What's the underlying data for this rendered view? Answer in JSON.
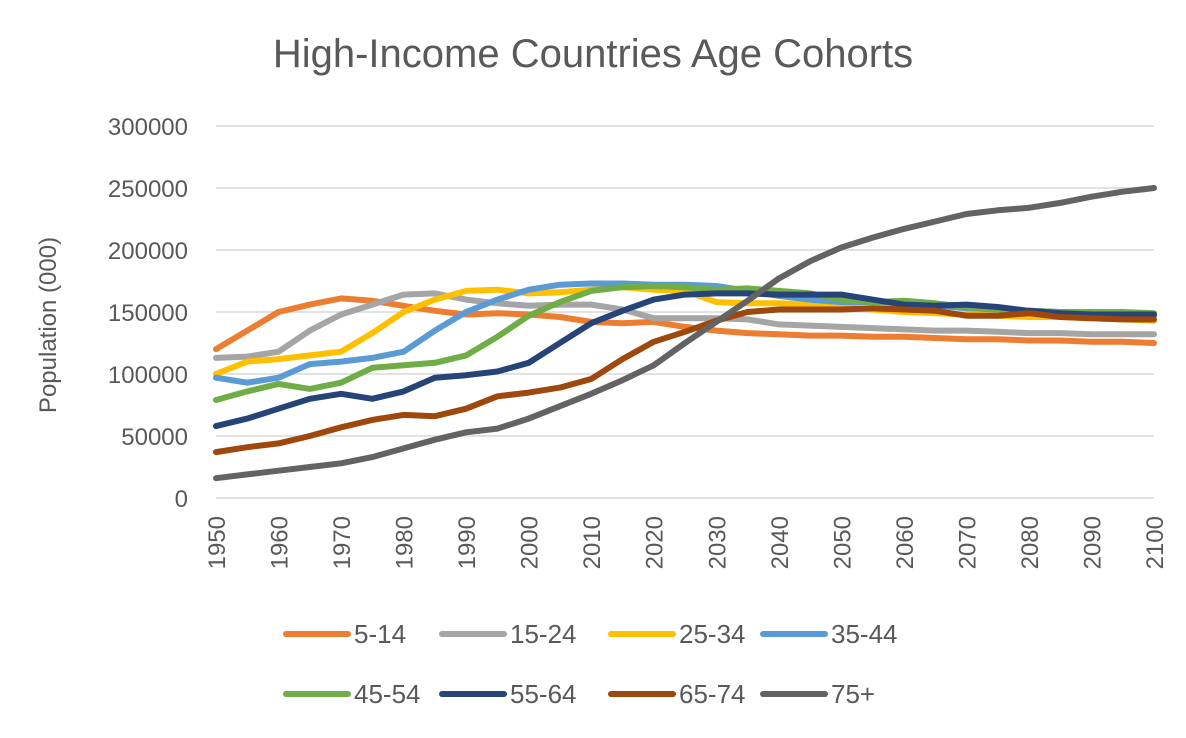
{
  "chart_data": {
    "type": "line",
    "title": "High-Income Countries Age Cohorts",
    "xlabel": "",
    "ylabel": "Population (000)",
    "ylim": [
      0,
      300000
    ],
    "yticks": [
      0,
      50000,
      100000,
      150000,
      200000,
      250000,
      300000
    ],
    "grid": true,
    "legend_position": "bottom",
    "x": [
      1950,
      1955,
      1960,
      1965,
      1970,
      1975,
      1980,
      1985,
      1990,
      1995,
      2000,
      2005,
      2010,
      2015,
      2020,
      2025,
      2030,
      2035,
      2040,
      2045,
      2050,
      2055,
      2060,
      2065,
      2070,
      2075,
      2080,
      2085,
      2090,
      2095,
      2100
    ],
    "xtick_labels": [
      "1950",
      "1960",
      "1970",
      "1980",
      "1990",
      "2000",
      "2010",
      "2020",
      "2030",
      "2040",
      "2050",
      "2060",
      "2070",
      "2080",
      "2090",
      "2100"
    ],
    "series": [
      {
        "name": "5-14",
        "color": "#ED7D31",
        "values": [
          120000,
          135000,
          150000,
          156000,
          161000,
          159000,
          155000,
          151000,
          148000,
          149000,
          148000,
          146000,
          142000,
          141000,
          142000,
          138000,
          135000,
          133000,
          132000,
          131000,
          131000,
          130000,
          130000,
          129000,
          128000,
          128000,
          127000,
          127000,
          126000,
          126000,
          125000
        ]
      },
      {
        "name": "15-24",
        "color": "#A5A5A5",
        "values": [
          113000,
          114000,
          118000,
          135000,
          148000,
          156000,
          164000,
          165000,
          160000,
          157000,
          155000,
          156000,
          156000,
          152000,
          145000,
          145000,
          145000,
          144000,
          140000,
          139000,
          138000,
          137000,
          136000,
          135000,
          135000,
          134000,
          133000,
          133000,
          132000,
          132000,
          132000
        ]
      },
      {
        "name": "25-34",
        "color": "#FFC000",
        "values": [
          100000,
          110000,
          112000,
          115000,
          118000,
          133000,
          150000,
          160000,
          167000,
          168000,
          165000,
          166000,
          168000,
          170000,
          168000,
          167000,
          158000,
          157000,
          157000,
          156000,
          154000,
          152000,
          150000,
          149000,
          148000,
          147000,
          146000,
          146000,
          145000,
          144000,
          143000
        ]
      },
      {
        "name": "35-44",
        "color": "#5B9BD5",
        "values": [
          97000,
          93000,
          97000,
          108000,
          110000,
          113000,
          118000,
          135000,
          150000,
          160000,
          168000,
          172000,
          173000,
          173000,
          172000,
          172000,
          171000,
          167000,
          163000,
          160000,
          158000,
          158000,
          157000,
          155000,
          153000,
          152000,
          151000,
          150000,
          149000,
          148000,
          147000
        ]
      },
      {
        "name": "45-54",
        "color": "#70AD47",
        "values": [
          79000,
          86000,
          92000,
          88000,
          93000,
          105000,
          107000,
          109000,
          115000,
          130000,
          147000,
          158000,
          167000,
          170000,
          171000,
          170000,
          168000,
          169000,
          167000,
          165000,
          160000,
          158000,
          159000,
          157000,
          154000,
          152000,
          151000,
          150000,
          150000,
          150000,
          149000
        ]
      },
      {
        "name": "55-64",
        "color": "#264478",
        "values": [
          58000,
          64000,
          72000,
          80000,
          84000,
          80000,
          86000,
          97000,
          99000,
          102000,
          109000,
          125000,
          141000,
          151000,
          160000,
          164000,
          165000,
          165000,
          164000,
          164000,
          164000,
          160000,
          156000,
          155000,
          156000,
          154000,
          151000,
          149000,
          148000,
          148000,
          148000
        ]
      },
      {
        "name": "65-74",
        "color": "#9E480E",
        "values": [
          37000,
          41000,
          44000,
          50000,
          57000,
          63000,
          67000,
          66000,
          72000,
          82000,
          85000,
          89000,
          96000,
          112000,
          126000,
          134000,
          143000,
          150000,
          152000,
          152000,
          152000,
          153000,
          152000,
          151000,
          147000,
          147000,
          149000,
          146000,
          145000,
          144000,
          144000
        ]
      },
      {
        "name": "75+",
        "color": "#636363",
        "values": [
          16000,
          19000,
          22000,
          25000,
          28000,
          33000,
          40000,
          47000,
          53000,
          56000,
          64000,
          74000,
          84000,
          95000,
          107000,
          125000,
          142000,
          159000,
          177000,
          191000,
          202000,
          210000,
          217000,
          223000,
          229000,
          232000,
          234000,
          238000,
          243000,
          247000,
          250000
        ]
      }
    ]
  }
}
